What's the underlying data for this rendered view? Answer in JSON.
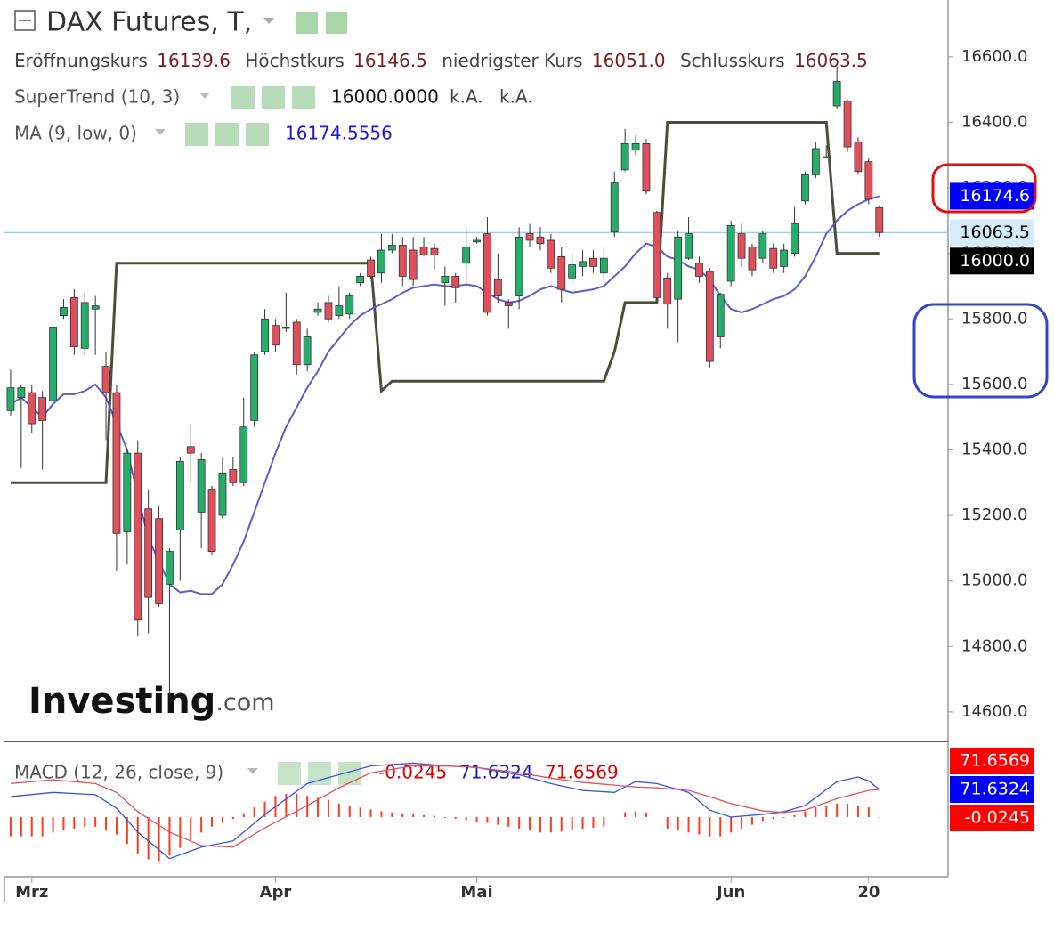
{
  "chart_data": [
    {
      "type": "candlestick",
      "title": "DAX Futures, T,",
      "readout": [
        {
          "name": "Eröffnungskurs",
          "label": "16139.6"
        },
        {
          "name": "Höchstkurs",
          "label": "16146.5"
        },
        {
          "name": "niedrigster Kurs",
          "label": "16051.0"
        },
        {
          "name": "Schlusskurs",
          "label": "16063.5"
        }
      ],
      "categories": [
        null,
        null,
        "Mrz",
        null,
        null,
        null,
        null,
        null,
        null,
        null,
        null,
        null,
        null,
        null,
        null,
        null,
        null,
        null,
        null,
        null,
        null,
        null,
        null,
        null,
        null,
        "Apr",
        null,
        null,
        null,
        null,
        null,
        null,
        null,
        null,
        null,
        null,
        null,
        null,
        null,
        null,
        null,
        null,
        null,
        null,
        "Mai",
        null,
        null,
        null,
        null,
        null,
        null,
        null,
        null,
        null,
        null,
        null,
        null,
        null,
        null,
        null,
        null,
        null,
        null,
        null,
        null,
        null,
        null,
        null,
        "Jun",
        null,
        null,
        null,
        null,
        null,
        null,
        null,
        null,
        null,
        null,
        null,
        null,
        "20",
        null
      ],
      "open": [
        15520,
        15560,
        15575,
        15560,
        15550,
        15810,
        15865,
        15710,
        15830,
        15655,
        15575,
        15150,
        15390,
        15220,
        15190,
        14990,
        15155,
        15410,
        15210,
        15280,
        15200,
        15340,
        15300,
        15490,
        15700,
        15780,
        15775,
        15790,
        15660,
        15820,
        15850,
        15810,
        15815,
        15910,
        15980,
        15940,
        16010,
        16025,
        16010,
        16020,
        16015,
        15910,
        15930,
        15970,
        16035,
        16060,
        15920,
        15850,
        15870,
        16060,
        16050,
        16040,
        15990,
        15925,
        15960,
        15985,
        15940,
        16065,
        16255,
        16315,
        16335,
        16125,
        15925,
        15860,
        15985,
        15970,
        15945,
        15745,
        15915,
        16060,
        16020,
        15985,
        16015,
        15960,
        16000,
        16160,
        16240,
        16295,
        16450,
        16465,
        16340,
        16280,
        16139.6
      ],
      "close": [
        15590,
        15590,
        15480,
        15490,
        15775,
        15835,
        15715,
        15850,
        15840,
        15575,
        15145,
        15390,
        14880,
        14950,
        14930,
        15090,
        15365,
        15390,
        15370,
        15090,
        15330,
        15300,
        15470,
        15690,
        15800,
        15720,
        15775,
        15660,
        15745,
        15830,
        15800,
        15840,
        15870,
        15930,
        15930,
        16010,
        16025,
        15930,
        15920,
        15995,
        15995,
        15930,
        15895,
        16020,
        16040,
        15820,
        15870,
        15840,
        16050,
        16040,
        16030,
        15955,
        15890,
        15965,
        15975,
        15960,
        15985,
        16215,
        16335,
        16335,
        16190,
        15865,
        15845,
        16050,
        16060,
        15930,
        15670,
        15875,
        16085,
        15985,
        15950,
        16060,
        15955,
        16010,
        16090,
        16240,
        16320,
        16295,
        16525,
        16325,
        16250,
        16165,
        16063.5
      ],
      "high": [
        15645,
        15600,
        15600,
        15580,
        15790,
        15860,
        15890,
        15880,
        15870,
        15700,
        15600,
        15400,
        15430,
        15280,
        15230,
        15100,
        15380,
        15480,
        15390,
        15290,
        15380,
        15380,
        15560,
        15700,
        15830,
        15800,
        15880,
        15800,
        15770,
        15850,
        15870,
        15900,
        15880,
        15940,
        15990,
        16060,
        16060,
        16050,
        16050,
        16050,
        16030,
        15960,
        15940,
        16080,
        16050,
        16110,
        16000,
        15860,
        16080,
        16090,
        16080,
        16060,
        16020,
        16000,
        16010,
        16010,
        16020,
        16250,
        16380,
        16360,
        16350,
        16130,
        15940,
        16070,
        16110,
        15990,
        15955,
        15880,
        16100,
        16090,
        16030,
        16070,
        16030,
        16030,
        16140,
        16250,
        16340,
        16330,
        16570,
        16470,
        16355,
        16290,
        16146.5
      ],
      "low": [
        15505,
        15345,
        15450,
        15340,
        15540,
        15800,
        15690,
        15690,
        15690,
        15430,
        15030,
        15050,
        14830,
        14840,
        14920,
        14650,
        15000,
        15300,
        15100,
        15080,
        15190,
        15290,
        15290,
        15470,
        15690,
        15700,
        15760,
        15630,
        15640,
        15810,
        15790,
        15800,
        15800,
        15900,
        15920,
        15910,
        16000,
        15900,
        15900,
        15990,
        15950,
        15840,
        15850,
        15900,
        16030,
        15810,
        15850,
        15770,
        15830,
        16020,
        16010,
        15940,
        15850,
        15910,
        15930,
        15940,
        15920,
        16050,
        16250,
        16300,
        16180,
        15860,
        15770,
        15730,
        15980,
        15910,
        15650,
        15710,
        15900,
        15960,
        15930,
        15970,
        15940,
        15940,
        15990,
        16150,
        16230,
        16290,
        16440,
        16310,
        16240,
        16150,
        16051.0
      ],
      "up_color": "#27ad6a",
      "down_color": "#e0505c",
      "series": [
        {
          "name": "SuperTrend (10, 3)",
          "color": "#4d4d3b",
          "readout": [
            "16000.0000",
            "k.A.",
            "k.A."
          ],
          "values": [
            15300,
            15300,
            15300,
            15300,
            15300,
            15300,
            15300,
            15300,
            15300,
            15300,
            15970,
            15970,
            15970,
            15970,
            15970,
            15970,
            15970,
            15970,
            15970,
            15970,
            15970,
            15970,
            15970,
            15970,
            15970,
            15970,
            15970,
            15970,
            15970,
            15970,
            15970,
            15970,
            15970,
            15970,
            15970,
            15580,
            15610,
            15610,
            15610,
            15610,
            15610,
            15610,
            15610,
            15610,
            15610,
            15610,
            15610,
            15610,
            15610,
            15610,
            15610,
            15610,
            15610,
            15610,
            15610,
            15610,
            15610,
            15700,
            15850,
            15850,
            15850,
            15850,
            16400,
            16400,
            16400,
            16400,
            16400,
            16400,
            16400,
            16400,
            16400,
            16400,
            16400,
            16400,
            16400,
            16400,
            16400,
            16400,
            16000,
            16000,
            16000,
            16000,
            16000
          ]
        },
        {
          "name": "MA (9, low, 0)",
          "color": "#5b5fc7",
          "values": [
            15540,
            15560,
            15530,
            15500,
            15540,
            15570,
            15570,
            15580,
            15600,
            15560,
            15480,
            15400,
            15260,
            15130,
            15060,
            14990,
            14965,
            14970,
            14960,
            14960,
            14990,
            15050,
            15120,
            15210,
            15300,
            15390,
            15470,
            15530,
            15590,
            15640,
            15700,
            15740,
            15780,
            15810,
            15830,
            15845,
            15860,
            15880,
            15895,
            15900,
            15905,
            15900,
            15900,
            15905,
            15900,
            15880,
            15860,
            15850,
            15855,
            15870,
            15890,
            15900,
            15890,
            15880,
            15885,
            15890,
            15900,
            15930,
            15960,
            16000,
            16030,
            16020,
            15990,
            15980,
            15960,
            15950,
            15920,
            15870,
            15830,
            15820,
            15830,
            15845,
            15860,
            15870,
            15890,
            15930,
            15990,
            16060,
            16100,
            16130,
            16150,
            16165,
            16174.5556
          ]
        }
      ],
      "badges": [
        {
          "value": 16174.5556,
          "label": "16174.6",
          "color": "#0000ff",
          "text_color": "#ffffff"
        },
        {
          "value": 16063.5,
          "color": "#d6ecfa",
          "text_color": "#000000"
        },
        {
          "value": 16000,
          "label": "16000.0",
          "color": "#000000",
          "text_color": "#ffffff"
        }
      ],
      "ylim": [
        14510,
        16760
      ],
      "yticks": [
        {
          "value": 14600,
          "label": "14600.0"
        },
        {
          "value": 14800,
          "label": "14800.0"
        },
        {
          "value": 15000,
          "label": "15000.0"
        },
        {
          "value": 15200,
          "label": "15200.0"
        },
        {
          "value": 15400,
          "label": "15400.0"
        },
        {
          "value": 15600,
          "label": "15600.0"
        },
        {
          "value": 15800,
          "label": "15800.0"
        },
        {
          "value": 16000,
          "label": "16000.0"
        },
        {
          "value": 16200,
          "label": "16200.0"
        },
        {
          "value": 16400,
          "label": "16400.0"
        },
        {
          "value": 16600,
          "label": "16600.0"
        }
      ],
      "watermark": {
        "brand": "Investing",
        "suffix": ".com"
      }
    },
    {
      "type": "macd",
      "title": "MACD (12, 26, close, 9)",
      "histogram": {
        "color": "#ff3b1f",
        "values": [
          -50,
          -50,
          -50,
          -50,
          -40,
          -35,
          -30,
          -25,
          -25,
          -35,
          -45,
          -70,
          -95,
          -110,
          -115,
          -100,
          -80,
          -60,
          -40,
          -25,
          -15,
          -5,
          10,
          25,
          40,
          55,
          60,
          60,
          55,
          50,
          45,
          35,
          30,
          25,
          20,
          15,
          12,
          10,
          8,
          5,
          3,
          -2,
          -5,
          -8,
          -12,
          -15,
          -20,
          -25,
          -30,
          -35,
          -40,
          -40,
          -38,
          -35,
          -30,
          -28,
          -25,
          null,
          12,
          15,
          12,
          null,
          -30,
          -35,
          -40,
          -45,
          -50,
          -50,
          -40,
          -30,
          -20,
          -10,
          -5,
          -2,
          5,
          15,
          25,
          30,
          35,
          35,
          30,
          25,
          -0.0245
        ]
      },
      "x": [
        0,
        4,
        8,
        10,
        12,
        15,
        18,
        21,
        24,
        28,
        31,
        34,
        38,
        41,
        44,
        48,
        51,
        54,
        57,
        59,
        61,
        64,
        66,
        68,
        71,
        73,
        75,
        78,
        80,
        81,
        82
      ],
      "series": [
        {
          "color": "#3355dd",
          "values": [
            53,
            64,
            58,
            23,
            -39,
            -108,
            -78,
            -62,
            7,
            87,
            110,
            133,
            140,
            133,
            129,
            110,
            87,
            69,
            64,
            92,
            87,
            64,
            18,
            0,
            7,
            14,
            30,
            92,
            104,
            94,
            71.6324
          ]
        },
        {
          "color": "#e05060",
          "values": [
            87,
            97,
            87,
            64,
            14,
            -39,
            -74,
            -78,
            -28,
            30,
            76,
            115,
            133,
            133,
            129,
            115,
            101,
            90,
            83,
            78,
            76,
            69,
            53,
            35,
            16,
            12,
            18,
            48,
            62,
            69,
            71.6569
          ]
        }
      ],
      "ylim": [
        -155,
        185
      ]
    }
  ]
}
